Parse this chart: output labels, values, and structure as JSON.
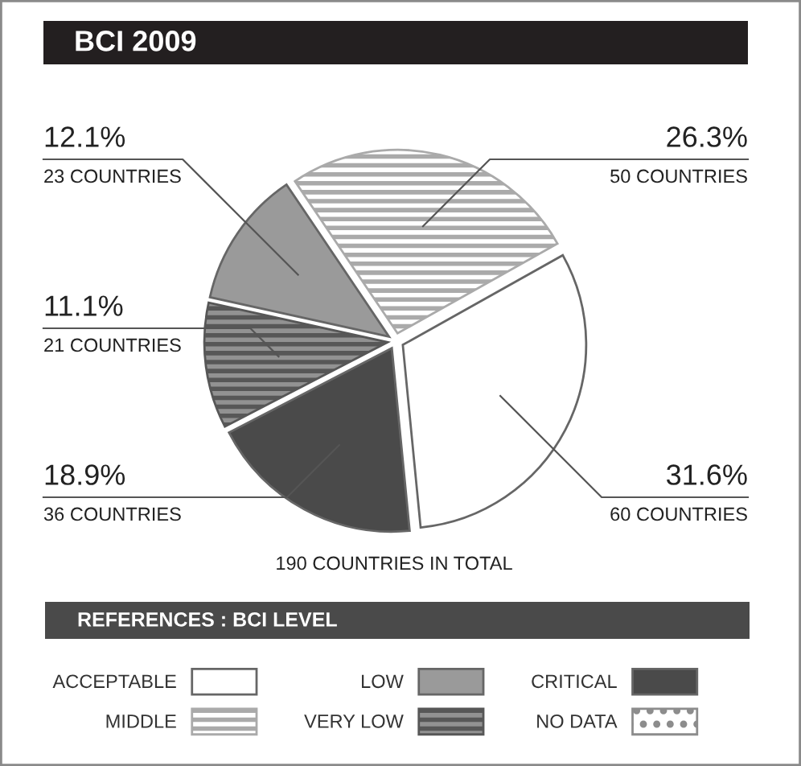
{
  "chart_data": {
    "type": "pie",
    "title": "BCI 2009",
    "categories": [
      "MIDDLE",
      "ACCEPTABLE",
      "CRITICAL",
      "VERY LOW",
      "LOW",
      "NO DATA"
    ],
    "values": [
      50,
      60,
      36,
      21,
      23,
      0
    ],
    "colors": [
      "#aaaaaa",
      "#ffffff",
      "#4a4a4a",
      "#575757",
      "#9a9a9a",
      "#ffffff"
    ],
    "value_labels": [
      "26.3%\n50 COUNTRIES",
      "31.6%\n60 COUNTRIES",
      "18.9%\n36 COUNTRIES",
      "11.1%\n21 COUNTRIES",
      "12.1%\n23 COUNTRIES",
      null
    ],
    "annotations": [
      "190 COUNTRIES IN TOTAL"
    ],
    "legend_title": "REFERENCES : BCI LEVEL",
    "legend": "bottom"
  }
}
